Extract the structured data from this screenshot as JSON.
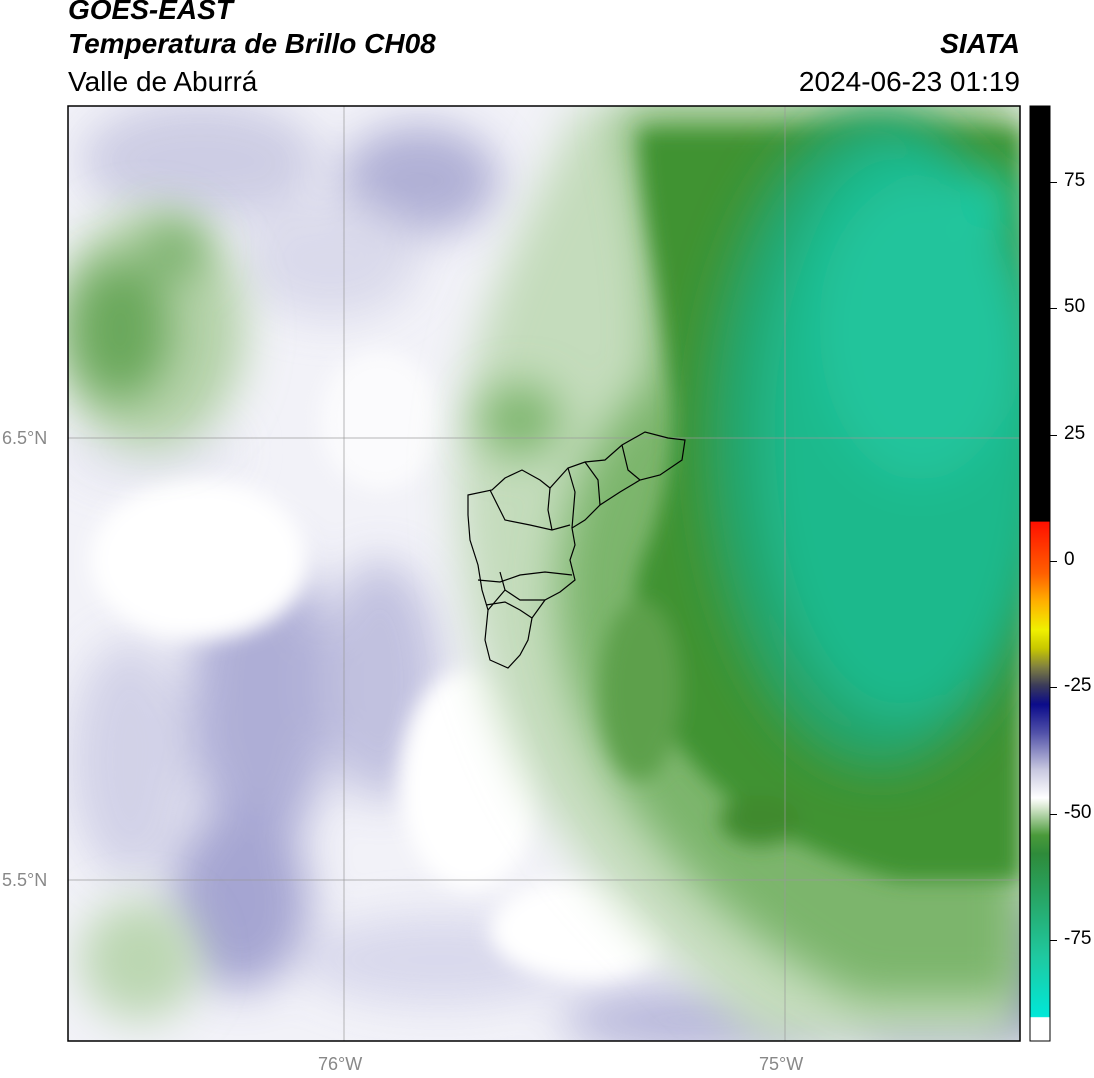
{
  "header": {
    "title_line1": "GOES-EAST",
    "title_line2": "Temperatura de Brillo CH08",
    "subtitle": "Valle de Aburrá",
    "brand": "SIATA",
    "datetime": "2024-06-23 01:19"
  },
  "map": {
    "lat_labels": [
      "6.5°N",
      "5.5°N"
    ],
    "lon_labels": [
      "76°W",
      "75°W"
    ],
    "region_outline": "Valle de Aburrá municipalities",
    "colors": {
      "cold_top": "#1fc9a0",
      "cloud_green": "#3a8f2e",
      "light_green": "#c7dcc0",
      "clear_lavender": "#b7b7d8",
      "clear_purple": "#7070b8",
      "background": "#ffffff"
    }
  },
  "colorbar": {
    "ticks": [
      "75",
      "50",
      "25",
      "0",
      "-25",
      "-50",
      "-75"
    ],
    "range": [
      -95,
      90
    ],
    "units": ""
  }
}
